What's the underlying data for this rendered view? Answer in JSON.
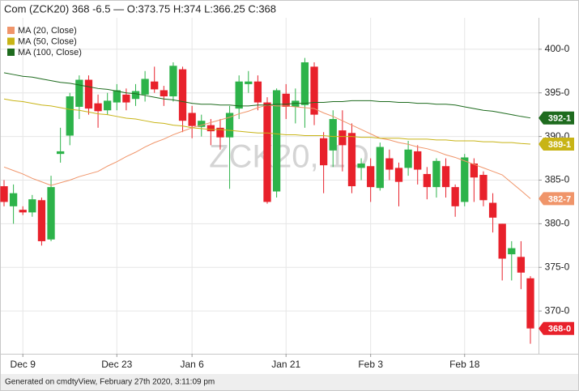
{
  "chart_data": {
    "type": "candlestick",
    "title": "Com (ZCK20) 368 -6.5 — O:373.75 H:374 L:366.25 C:368",
    "watermark": "ZCK20, 1D",
    "footer": "Generated on cmdtyView, February 27th 2020, 3:11:09 pm",
    "categories": [
      null,
      null,
      "Dec 9",
      null,
      null,
      null,
      null,
      null,
      null,
      null,
      null,
      null,
      "Dec 23",
      null,
      null,
      null,
      null,
      null,
      null,
      null,
      "Jan 6",
      null,
      null,
      null,
      null,
      null,
      null,
      null,
      null,
      null,
      "Jan 21",
      null,
      null,
      null,
      null,
      null,
      null,
      null,
      null,
      "Feb 3",
      null,
      null,
      null,
      null,
      null,
      null,
      null,
      null,
      null,
      "Feb 18",
      null,
      null,
      null,
      null,
      null,
      null,
      null
    ],
    "candles": {
      "up_color": "#2db34a",
      "down_color": "#e8212b",
      "open": [
        384.3,
        382,
        381.6,
        381.3,
        382.7,
        378.2,
        388,
        390.1,
        393.4,
        396.5,
        393.8,
        393,
        393.9,
        394.8,
        394.3,
        394.8,
        396.3,
        395.3,
        394.6,
        397.7,
        392.7,
        391.1,
        391.3,
        391,
        389.9,
        393.2,
        396,
        396.3,
        393.9,
        383.7,
        394.9,
        393.4,
        393.6,
        398,
        389.8,
        388.4,
        390.7,
        390.4,
        386.4,
        386.6,
        384.1,
        387.5,
        386.4,
        386.4,
        388.3,
        385.7,
        384.2,
        386.6,
        384.2,
        382.5,
        386.9,
        385.6,
        382.4,
        380,
        376.5,
        376.2,
        373.75
      ],
      "high": [
        385,
        384.5,
        382,
        383.3,
        383,
        385.5,
        391,
        395,
        397,
        397,
        394.8,
        395,
        396,
        395.5,
        396,
        397.5,
        398,
        395.8,
        398.5,
        398,
        393.5,
        392.5,
        392,
        392,
        393.5,
        397,
        397.5,
        397,
        394.5,
        395.5,
        396,
        395.5,
        399,
        398.5,
        390.5,
        393,
        393,
        391.5,
        387.5,
        387.5,
        389.3,
        388.5,
        387,
        389.5,
        389,
        386.5,
        387.5,
        387.5,
        384.5,
        388,
        387.5,
        386,
        383.5,
        380,
        378,
        378,
        374
      ],
      "low": [
        382,
        380,
        381,
        380.8,
        377.5,
        378,
        387,
        389,
        392,
        392.5,
        391,
        392.5,
        393,
        393,
        393.5,
        394,
        395,
        393.5,
        394,
        390.5,
        389.8,
        390,
        389,
        388.5,
        384,
        392,
        395,
        393,
        382.3,
        383,
        392,
        391.5,
        391,
        391.3,
        383.5,
        386.5,
        386,
        383.5,
        385,
        382.5,
        383.8,
        385,
        382,
        385.5,
        384.5,
        382.8,
        383,
        383,
        380.8,
        382,
        382.5,
        382,
        379,
        373.5,
        373.5,
        372.5,
        366.25
      ],
      "close": [
        382.5,
        383.5,
        381.3,
        382.8,
        378,
        384.2,
        388.3,
        394.6,
        396.5,
        393.2,
        392.9,
        394.1,
        395.3,
        393.9,
        395.2,
        396.6,
        395.4,
        394.6,
        398.1,
        391.8,
        391.2,
        391.8,
        390.6,
        389.9,
        392.7,
        396.3,
        396.3,
        393.9,
        382.5,
        395.3,
        393.4,
        394.1,
        398.5,
        392.5,
        386.7,
        392,
        389,
        384.3,
        386.9,
        384.2,
        388.8,
        386.2,
        384.8,
        388.5,
        386.2,
        384.2,
        387.2,
        384.2,
        382,
        387.6,
        385.3,
        382.7,
        380.7,
        376,
        377.2,
        374.4,
        368
      ],
      "last_label": "368-0"
    },
    "series": [
      {
        "name": "MA (20, Close)",
        "color": "#f0956a",
        "end_label": "382-7",
        "values": [
          386.5,
          386.1,
          385.7,
          385.2,
          384.8,
          384.4,
          384.7,
          385.0,
          385.4,
          385.7,
          386.0,
          386.6,
          387.1,
          387.7,
          388.2,
          388.8,
          389.3,
          389.7,
          390.2,
          390.6,
          391.0,
          391.3,
          391.6,
          391.9,
          392.2,
          392.6,
          392.9,
          393.3,
          393.6,
          393.5,
          393.5,
          393.4,
          393.3,
          393.2,
          392.7,
          392.3,
          391.8,
          391.3,
          390.8,
          390.3,
          389.8,
          389.6,
          389.3,
          389.1,
          388.8,
          388.6,
          388.3,
          387.9,
          387.6,
          387.2,
          386.8,
          386.4,
          386.0,
          385.6,
          384.7,
          383.8,
          382.875
        ]
      },
      {
        "name": "MA (50, Close)",
        "color": "#c8b416",
        "end_label": "389-1",
        "values": [
          394.3,
          394.1,
          394.0,
          393.8,
          393.6,
          393.5,
          393.3,
          393.1,
          393.0,
          392.8,
          392.6,
          392.5,
          392.3,
          392.1,
          392.0,
          391.8,
          391.6,
          391.5,
          391.3,
          391.2,
          391.0,
          390.9,
          390.8,
          390.8,
          390.7,
          390.6,
          390.5,
          390.4,
          390.4,
          390.3,
          390.2,
          390.2,
          390.1,
          390.1,
          390.1,
          390.0,
          390.0,
          390.0,
          389.9,
          389.9,
          389.8,
          389.8,
          389.8,
          389.7,
          389.7,
          389.7,
          389.6,
          389.6,
          389.5,
          389.5,
          389.5,
          389.4,
          389.4,
          389.3,
          389.3,
          389.2,
          389.125
        ]
      },
      {
        "name": "MA (100, Close)",
        "color": "#1e6b1e",
        "end_label": "392-1",
        "values": [
          397.3,
          397.1,
          396.9,
          396.8,
          396.6,
          396.4,
          396.2,
          396.1,
          395.9,
          395.7,
          395.5,
          395.4,
          395.2,
          395.0,
          394.9,
          394.7,
          394.5,
          394.3,
          394.2,
          394.0,
          393.8,
          393.7,
          393.7,
          393.6,
          393.6,
          393.5,
          393.5,
          393.6,
          393.6,
          393.7,
          393.7,
          393.8,
          393.8,
          393.9,
          393.9,
          394.0,
          394.0,
          394.1,
          394.1,
          394.1,
          394.0,
          394.0,
          393.9,
          393.9,
          393.8,
          393.8,
          393.7,
          393.7,
          393.6,
          393.4,
          393.2,
          393.0,
          392.9,
          392.7,
          392.5,
          392.3,
          392.125
        ]
      }
    ],
    "ylim": [
      365.1,
      403.6
    ],
    "yticks": [
      {
        "value": 370,
        "label": "370-0"
      },
      {
        "value": 375,
        "label": "375-0"
      },
      {
        "value": 380,
        "label": "380-0"
      },
      {
        "value": 385,
        "label": "385-0"
      },
      {
        "value": 390,
        "label": "390-0"
      },
      {
        "value": 395,
        "label": "395-0"
      },
      {
        "value": 400,
        "label": "400-0"
      }
    ],
    "grid": true,
    "legend": "top-left"
  }
}
